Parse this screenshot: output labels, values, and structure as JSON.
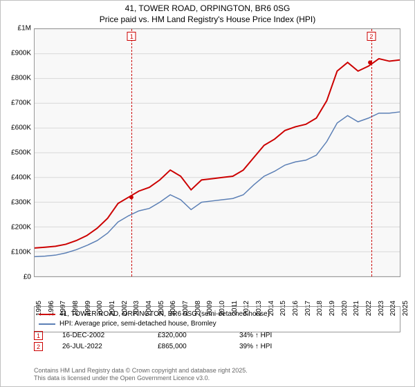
{
  "title_line1": "41, TOWER ROAD, ORPINGTON, BR6 0SG",
  "title_line2": "Price paid vs. HM Land Registry's House Price Index (HPI)",
  "chart": {
    "type": "line",
    "background_color": "#f8f8f8",
    "grid_color": "#d8d8d8",
    "border_color": "#999999",
    "ylim": [
      0,
      1000000
    ],
    "ytick_step": 100000,
    "y_labels": [
      "£0",
      "£100K",
      "£200K",
      "£300K",
      "£400K",
      "£500K",
      "£600K",
      "£700K",
      "£800K",
      "£900K",
      "£1M"
    ],
    "x_years": [
      1995,
      1996,
      1997,
      1998,
      1999,
      2000,
      2001,
      2002,
      2003,
      2004,
      2005,
      2006,
      2007,
      2008,
      2009,
      2010,
      2011,
      2012,
      2013,
      2014,
      2015,
      2016,
      2017,
      2018,
      2019,
      2020,
      2021,
      2022,
      2023,
      2024,
      2025
    ],
    "series": [
      {
        "name": "price_paid",
        "label": "41, TOWER ROAD, ORPINGTON, BR6 0SG (semi-detached house)",
        "color": "#cc0000",
        "line_width": 2,
        "values": [
          115,
          118,
          122,
          130,
          145,
          165,
          195,
          235,
          295,
          320,
          345,
          360,
          390,
          430,
          405,
          350,
          390,
          395,
          400,
          405,
          430,
          480,
          530,
          555,
          590,
          605,
          615,
          640,
          710,
          830,
          865,
          830,
          850,
          880,
          870,
          875
        ]
      },
      {
        "name": "hpi",
        "label": "HPI: Average price, semi-detached house, Bromley",
        "color": "#5b7fb5",
        "line_width": 1.5,
        "values": [
          80,
          82,
          86,
          95,
          108,
          125,
          145,
          175,
          220,
          245,
          265,
          275,
          300,
          330,
          310,
          270,
          300,
          305,
          310,
          315,
          330,
          370,
          405,
          425,
          450,
          463,
          470,
          490,
          545,
          620,
          650,
          625,
          640,
          660,
          660,
          665
        ]
      }
    ],
    "vlines": [
      {
        "id": "1",
        "year": 2002.95,
        "color": "#cc0000"
      },
      {
        "id": "2",
        "year": 2022.56,
        "color": "#cc0000"
      }
    ]
  },
  "legend": {
    "rows": [
      {
        "color": "#cc0000",
        "width": 2,
        "label": "41, TOWER ROAD, ORPINGTON, BR6 0SG (semi-detached house)"
      },
      {
        "color": "#5b7fb5",
        "width": 1.5,
        "label": "HPI: Average price, semi-detached house, Bromley"
      }
    ]
  },
  "markers": [
    {
      "id": "1",
      "color": "#cc0000",
      "date": "16-DEC-2002",
      "price": "£320,000",
      "delta": "34% ↑ HPI"
    },
    {
      "id": "2",
      "color": "#cc0000",
      "date": "26-JUL-2022",
      "price": "£865,000",
      "delta": "39% ↑ HPI"
    }
  ],
  "credit_line1": "Contains HM Land Registry data © Crown copyright and database right 2025.",
  "credit_line2": "This data is licensed under the Open Government Licence v3.0.",
  "label_fontsize": 10,
  "title_fontsize": 12
}
